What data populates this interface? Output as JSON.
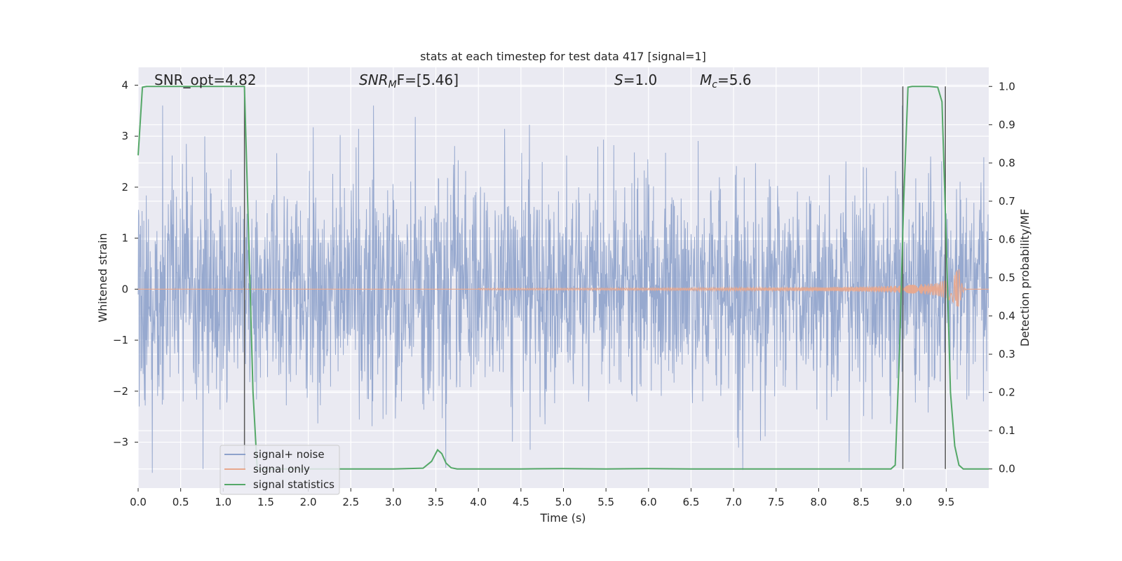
{
  "chart_data": {
    "type": "line",
    "title": "stats at each timestep for test data 417 [signal=1]",
    "xlabel": "Time (s)",
    "ylabel_left": "Whitened strain",
    "ylabel_right": "Detection probability/MF",
    "xlim": [
      0.0,
      10.0
    ],
    "ylim_left": [
      -3.9,
      4.35
    ],
    "ylim_right": [
      -0.05,
      1.05
    ],
    "x_ticks": [
      "0.0",
      "0.5",
      "1.0",
      "1.5",
      "2.0",
      "2.5",
      "3.0",
      "3.5",
      "4.0",
      "4.5",
      "5.0",
      "5.5",
      "6.0",
      "6.5",
      "7.0",
      "7.5",
      "8.0",
      "8.5",
      "9.0",
      "9.5"
    ],
    "y_left_ticks": [
      "4",
      "3",
      "2",
      "1",
      "0",
      "−1",
      "−2",
      "−3"
    ],
    "y_right_ticks": [
      "1.0",
      "0.9",
      "0.8",
      "0.7",
      "0.6",
      "0.5",
      "0.4",
      "0.3",
      "0.2",
      "0.1",
      "0.0"
    ],
    "annotations": {
      "snr_opt": "SNR_opt=4.82",
      "snr_mf_sym": "SNR",
      "snr_mf_sub": "M",
      "snr_mf_tail": "F=[5.46]",
      "s_sym": "S",
      "s_val": "=1.0",
      "mc_sym": "M",
      "mc_sub": "c",
      "mc_val": "=5.6"
    },
    "legend": {
      "placement": "lower-left",
      "entries": [
        "signal+ noise",
        "signal only",
        "signal statistics"
      ]
    },
    "grid": true,
    "series": [
      {
        "name": "signal+ noise",
        "axis": "left",
        "color": "#8ea2cb",
        "description_type": "whitened strain noise, amplitude ~N(0,1)",
        "seed": 417,
        "peaks_max": 3.6,
        "peaks_min": -3.6
      },
      {
        "name": "signal only",
        "axis": "left",
        "color": "#e8a88d",
        "chirp": {
          "t_start": 4.0,
          "t_merger": 9.65,
          "amp_at_merger": 0.45
        }
      },
      {
        "name": "signal statistics",
        "axis": "right",
        "color": "#55a868",
        "x": [
          0.0,
          0.05,
          0.1,
          0.5,
          1.0,
          1.25,
          1.3,
          1.35,
          1.4,
          1.5,
          2.0,
          2.5,
          3.0,
          3.35,
          3.45,
          3.52,
          3.57,
          3.62,
          3.68,
          3.75,
          4.0,
          4.5,
          5.0,
          5.5,
          6.0,
          6.5,
          7.0,
          7.5,
          8.0,
          8.5,
          8.85,
          8.9,
          8.95,
          9.0,
          9.05,
          9.1,
          9.2,
          9.3,
          9.4,
          9.45,
          9.5,
          9.55,
          9.6,
          9.65,
          9.7,
          9.8,
          10.0
        ],
        "y": [
          0.82,
          0.998,
          1.0,
          1.0,
          1.0,
          1.0,
          0.6,
          0.2,
          0.0,
          0.0,
          0.0,
          0.0,
          0.0,
          0.002,
          0.02,
          0.05,
          0.04,
          0.015,
          0.003,
          0.0,
          0.0,
          0.0,
          0.001,
          0.0,
          0.001,
          0.0,
          0.0,
          0.0,
          0.0,
          0.0,
          0.0,
          0.01,
          0.3,
          0.7,
          0.998,
          1.0,
          1.0,
          1.0,
          0.998,
          0.96,
          0.6,
          0.2,
          0.06,
          0.01,
          0.0,
          0.0,
          0.0
        ]
      }
    ],
    "vertical_markers": [
      1.25,
      8.99,
      9.49
    ]
  }
}
